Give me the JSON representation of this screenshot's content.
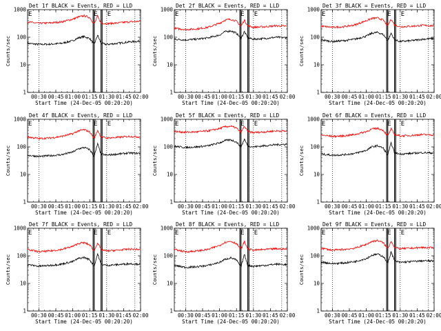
{
  "chart_data": [
    {
      "type": "line",
      "title": "Det 1f BLACK = Events, RED = LLD",
      "xlabel": "Start Time (24-Dec-05 00:20:20)",
      "ylabel": "Counts/sec",
      "yscale": "log",
      "ylim": [
        1,
        1000
      ],
      "ytick_labels": [
        "1",
        "10",
        "100",
        "1000"
      ],
      "xlim": [
        "00:20",
        "02:00"
      ],
      "xtick_labels": [
        "00:30",
        "00:45",
        "01:00",
        "01:15",
        "01:30",
        "01:45",
        "02:00"
      ],
      "vlines_dotted": [
        "00:30",
        "01:30",
        "01:55"
      ],
      "vlines_solid": [
        "01:18",
        "01:19",
        "01:25",
        "01:26"
      ],
      "markers": [
        "E",
        "E",
        "E"
      ],
      "series": [
        {
          "color": "#000000",
          "x": [
            "00:20",
            "00:30",
            "00:40",
            "00:50",
            "01:00",
            "01:05",
            "01:10",
            "01:15",
            "01:19",
            "01:22",
            "01:25",
            "01:30",
            "01:40",
            "01:50",
            "02:00"
          ],
          "y": [
            60,
            55,
            56,
            60,
            75,
            95,
            105,
            90,
            55,
            120,
            60,
            55,
            60,
            68,
            72
          ]
        },
        {
          "color": "#ff0000",
          "x": [
            "00:20",
            "00:30",
            "00:40",
            "00:50",
            "01:00",
            "01:05",
            "01:10",
            "01:15",
            "01:19",
            "01:22",
            "01:25",
            "01:30",
            "01:40",
            "01:50",
            "02:00"
          ],
          "y": [
            360,
            320,
            330,
            360,
            450,
            540,
            600,
            520,
            300,
            580,
            330,
            310,
            330,
            360,
            380
          ]
        }
      ]
    },
    {
      "type": "line",
      "title": "Det 2f BLACK = Events, RED = LLD",
      "xlabel": "Start Time (24-Dec-05 00:20:20)",
      "ylabel": "Counts/sec",
      "yscale": "log",
      "ylim": [
        1,
        1000
      ],
      "ytick_labels": [
        "1",
        "10",
        "100",
        "1000"
      ],
      "xlim": [
        "00:20",
        "02:00"
      ],
      "xtick_labels": [
        "00:30",
        "00:45",
        "01:00",
        "01:15",
        "01:30",
        "01:45",
        "02:00"
      ],
      "vlines_dotted": [
        "00:30",
        "01:30",
        "01:55"
      ],
      "vlines_solid": [
        "01:18",
        "01:19",
        "01:25",
        "01:26"
      ],
      "markers": [
        "E",
        "E",
        "E"
      ],
      "series": [
        {
          "color": "#000000",
          "x": [
            "00:20",
            "00:30",
            "00:40",
            "00:50",
            "01:00",
            "01:05",
            "01:10",
            "01:15",
            "01:19",
            "01:22",
            "01:25",
            "01:30",
            "01:40",
            "01:50",
            "02:00"
          ],
          "y": [
            85,
            80,
            85,
            95,
            120,
            160,
            170,
            140,
            90,
            160,
            95,
            85,
            90,
            100,
            95
          ]
        },
        {
          "color": "#ff0000",
          "x": [
            "00:20",
            "00:30",
            "00:40",
            "00:50",
            "01:00",
            "01:05",
            "01:10",
            "01:15",
            "01:19",
            "01:22",
            "01:25",
            "01:30",
            "01:40",
            "01:50",
            "02:00"
          ],
          "y": [
            210,
            190,
            200,
            230,
            320,
            420,
            450,
            380,
            250,
            420,
            260,
            230,
            240,
            260,
            250
          ]
        }
      ]
    },
    {
      "type": "line",
      "title": "Det 3f BLACK = Events, RED = LLD",
      "xlabel": "Start Time (24-Dec-05 00:20:20)",
      "ylabel": "Counts/sec",
      "yscale": "log",
      "ylim": [
        1,
        1000
      ],
      "ytick_labels": [
        "1",
        "10",
        "100",
        "1000"
      ],
      "xlim": [
        "00:20",
        "02:00"
      ],
      "xtick_labels": [
        "00:30",
        "00:45",
        "01:00",
        "01:15",
        "01:30",
        "01:45",
        "02:00"
      ],
      "vlines_dotted": [
        "00:30",
        "01:30",
        "01:55"
      ],
      "vlines_solid": [
        "01:18",
        "01:19",
        "01:25",
        "01:26"
      ],
      "markers": [
        "E",
        "E",
        "E"
      ],
      "series": [
        {
          "color": "#000000",
          "x": [
            "00:20",
            "00:30",
            "00:40",
            "00:50",
            "01:00",
            "01:05",
            "01:10",
            "01:15",
            "01:19",
            "01:22",
            "01:25",
            "01:30",
            "01:40",
            "01:50",
            "02:00"
          ],
          "y": [
            80,
            70,
            75,
            85,
            110,
            140,
            150,
            125,
            75,
            140,
            80,
            70,
            75,
            85,
            90
          ]
        },
        {
          "color": "#ff0000",
          "x": [
            "00:20",
            "00:30",
            "00:40",
            "00:50",
            "01:00",
            "01:05",
            "01:10",
            "01:15",
            "01:19",
            "01:22",
            "01:25",
            "01:30",
            "01:40",
            "01:50",
            "02:00"
          ],
          "y": [
            250,
            230,
            240,
            280,
            400,
            480,
            500,
            420,
            260,
            460,
            280,
            240,
            250,
            270,
            260
          ]
        }
      ]
    },
    {
      "type": "line",
      "title": "Det 4f BLACK = Events, RED = LLD",
      "xlabel": "Start Time (24-Dec-05 00:20:20)",
      "ylabel": "Counts/sec",
      "yscale": "log",
      "ylim": [
        1,
        1000
      ],
      "ytick_labels": [
        "1",
        "10",
        "100",
        "1000"
      ],
      "xlim": [
        "00:20",
        "02:00"
      ],
      "xtick_labels": [
        "00:30",
        "00:45",
        "01:00",
        "01:15",
        "01:30",
        "01:45",
        "02:00"
      ],
      "vlines_dotted": [
        "00:30",
        "01:30",
        "01:55"
      ],
      "vlines_solid": [
        "01:18",
        "01:19",
        "01:25",
        "01:26"
      ],
      "markers": [
        "E",
        "E",
        "E"
      ],
      "series": [
        {
          "color": "#000000",
          "x": [
            "00:20",
            "00:30",
            "00:40",
            "00:50",
            "01:00",
            "01:05",
            "01:10",
            "01:15",
            "01:19",
            "01:22",
            "01:25",
            "01:30",
            "01:40",
            "01:50",
            "02:00"
          ],
          "y": [
            50,
            45,
            48,
            52,
            65,
            85,
            95,
            80,
            45,
            130,
            55,
            50,
            55,
            60,
            58
          ]
        },
        {
          "color": "#ff0000",
          "x": [
            "00:20",
            "00:30",
            "00:40",
            "00:50",
            "01:00",
            "01:05",
            "01:10",
            "01:15",
            "01:19",
            "01:22",
            "01:25",
            "01:30",
            "01:40",
            "01:50",
            "02:00"
          ],
          "y": [
            230,
            200,
            210,
            240,
            300,
            380,
            420,
            350,
            200,
            400,
            230,
            210,
            220,
            240,
            230
          ]
        }
      ]
    },
    {
      "type": "line",
      "title": "Det 5f BLACK = Events, RED = LLD",
      "xlabel": "Start Time (24-Dec-05 00:20:20)",
      "ylabel": "Counts/sec",
      "yscale": "log",
      "ylim": [
        1,
        1000
      ],
      "ytick_labels": [
        "1",
        "10",
        "100",
        "1000"
      ],
      "xlim": [
        "00:20",
        "02:00"
      ],
      "xtick_labels": [
        "00:30",
        "00:45",
        "01:00",
        "01:15",
        "01:30",
        "01:45",
        "02:00"
      ],
      "vlines_dotted": [
        "00:30",
        "01:30",
        "01:55"
      ],
      "vlines_solid": [
        "01:18",
        "01:19",
        "01:25",
        "01:26"
      ],
      "markers": [
        "E",
        "E",
        "E"
      ],
      "series": [
        {
          "color": "#000000",
          "x": [
            "00:20",
            "00:30",
            "00:40",
            "00:50",
            "01:00",
            "01:05",
            "01:10",
            "01:15",
            "01:19",
            "01:22",
            "01:25",
            "01:30",
            "01:40",
            "01:50",
            "02:00"
          ],
          "y": [
            105,
            95,
            100,
            110,
            140,
            170,
            180,
            150,
            100,
            190,
            110,
            100,
            110,
            120,
            125
          ]
        },
        {
          "color": "#ff0000",
          "x": [
            "00:20",
            "00:30",
            "00:40",
            "00:50",
            "01:00",
            "01:05",
            "01:10",
            "01:15",
            "01:19",
            "01:22",
            "01:25",
            "01:30",
            "01:40",
            "01:50",
            "02:00"
          ],
          "y": [
            360,
            340,
            350,
            380,
            460,
            540,
            560,
            480,
            330,
            560,
            360,
            330,
            350,
            380,
            370
          ]
        }
      ]
    },
    {
      "type": "line",
      "title": "Det 6f BLACK = Events, RED = LLD",
      "xlabel": "Start Time (24-Dec-05 00:20:20)",
      "ylabel": "Counts/sec",
      "yscale": "log",
      "ylim": [
        1,
        1000
      ],
      "ytick_labels": [
        "1",
        "10",
        "100",
        "1000"
      ],
      "xlim": [
        "00:20",
        "02:00"
      ],
      "xtick_labels": [
        "00:30",
        "00:45",
        "01:00",
        "01:15",
        "01:30",
        "01:45",
        "02:00"
      ],
      "vlines_dotted": [
        "00:30",
        "01:30",
        "01:55"
      ],
      "vlines_solid": [
        "01:18",
        "01:19",
        "01:25",
        "01:26"
      ],
      "markers": [
        "E",
        "E",
        "E"
      ],
      "series": [
        {
          "color": "#000000",
          "x": [
            "00:20",
            "00:30",
            "00:40",
            "00:50",
            "01:00",
            "01:05",
            "01:10",
            "01:15",
            "01:19",
            "01:22",
            "01:25",
            "01:30",
            "01:40",
            "01:50",
            "02:00"
          ],
          "y": [
            55,
            50,
            52,
            58,
            75,
            100,
            110,
            90,
            50,
            140,
            60,
            55,
            58,
            62,
            60
          ]
        },
        {
          "color": "#ff0000",
          "x": [
            "00:20",
            "00:30",
            "00:40",
            "00:50",
            "01:00",
            "01:05",
            "01:10",
            "01:15",
            "01:19",
            "01:22",
            "01:25",
            "01:30",
            "01:40",
            "01:50",
            "02:00"
          ],
          "y": [
            270,
            240,
            250,
            280,
            360,
            440,
            470,
            400,
            250,
            450,
            280,
            250,
            260,
            280,
            270
          ]
        }
      ]
    },
    {
      "type": "line",
      "title": "Det 7f BLACK = Events, RED = LLD",
      "xlabel": "Start Time (24-Dec-05 00:20:20)",
      "ylabel": "Counts/sec",
      "yscale": "log",
      "ylim": [
        1,
        1000
      ],
      "ytick_labels": [
        "1",
        "10",
        "100",
        "1000"
      ],
      "xlim": [
        "00:20",
        "02:00"
      ],
      "xtick_labels": [
        "00:30",
        "00:45",
        "01:00",
        "01:15",
        "01:30",
        "01:45",
        "02:00"
      ],
      "vlines_dotted": [
        "00:30",
        "01:30",
        "01:55"
      ],
      "vlines_solid": [
        "01:18",
        "01:19",
        "01:25",
        "01:26"
      ],
      "markers": [
        "E",
        "E",
        "E"
      ],
      "series": [
        {
          "color": "#000000",
          "x": [
            "00:20",
            "00:30",
            "00:40",
            "00:50",
            "01:00",
            "01:05",
            "01:10",
            "01:15",
            "01:19",
            "01:22",
            "01:25",
            "01:30",
            "01:40",
            "01:50",
            "02:00"
          ],
          "y": [
            48,
            42,
            45,
            50,
            62,
            80,
            88,
            72,
            42,
            120,
            50,
            45,
            48,
            52,
            50
          ]
        },
        {
          "color": "#ff0000",
          "x": [
            "00:20",
            "00:30",
            "00:40",
            "00:50",
            "01:00",
            "01:05",
            "01:10",
            "01:15",
            "01:19",
            "01:22",
            "01:25",
            "01:30",
            "01:40",
            "01:50",
            "02:00"
          ],
          "y": [
            170,
            140,
            150,
            170,
            220,
            280,
            300,
            250,
            150,
            300,
            170,
            150,
            160,
            175,
            170
          ]
        }
      ]
    },
    {
      "type": "line",
      "title": "Det 8f BLACK = Events, RED = LLD",
      "xlabel": "Start Time (24-Dec-05 00:20:20)",
      "ylabel": "Counts/sec",
      "yscale": "log",
      "ylim": [
        1,
        1000
      ],
      "ytick_labels": [
        "1",
        "10",
        "100",
        "1000"
      ],
      "xlim": [
        "00:20",
        "02:00"
      ],
      "xtick_labels": [
        "00:30",
        "00:45",
        "01:00",
        "01:15",
        "01:30",
        "01:45",
        "02:00"
      ],
      "vlines_dotted": [
        "00:30",
        "01:30",
        "01:55"
      ],
      "vlines_solid": [
        "01:18",
        "01:19",
        "01:25",
        "01:26"
      ],
      "markers": [
        "E",
        "E",
        "E"
      ],
      "series": [
        {
          "color": "#000000",
          "x": [
            "00:20",
            "00:30",
            "00:40",
            "00:50",
            "01:00",
            "01:05",
            "01:10",
            "01:15",
            "01:19",
            "01:22",
            "01:25",
            "01:30",
            "01:40",
            "01:50",
            "02:00"
          ],
          "y": [
            45,
            38,
            40,
            45,
            58,
            75,
            85,
            70,
            40,
            115,
            45,
            42,
            45,
            50,
            48
          ]
        },
        {
          "color": "#ff0000",
          "x": [
            "00:20",
            "00:30",
            "00:40",
            "00:50",
            "01:00",
            "01:05",
            "01:10",
            "01:15",
            "01:19",
            "01:22",
            "01:25",
            "01:30",
            "01:40",
            "01:50",
            "02:00"
          ],
          "y": [
            170,
            140,
            150,
            170,
            240,
            310,
            340,
            280,
            170,
            330,
            180,
            160,
            170,
            180,
            175
          ]
        }
      ]
    },
    {
      "type": "line",
      "title": "Det 9f BLACK = Events, RED = LLD",
      "xlabel": "Start Time (24-Dec-05 00:20:20)",
      "ylabel": "Counts/sec",
      "yscale": "log",
      "ylim": [
        1,
        1000
      ],
      "ytick_labels": [
        "1",
        "10",
        "100",
        "1000"
      ],
      "xlim": [
        "00:20",
        "02:00"
      ],
      "xtick_labels": [
        "00:30",
        "00:45",
        "01:00",
        "01:15",
        "01:30",
        "01:45",
        "02:00"
      ],
      "vlines_dotted": [
        "00:30",
        "01:30",
        "01:55"
      ],
      "vlines_solid": [
        "01:18",
        "01:19",
        "01:25",
        "01:26"
      ],
      "markers": [
        "E",
        "E",
        "E"
      ],
      "series": [
        {
          "color": "#000000",
          "x": [
            "00:20",
            "00:30",
            "00:40",
            "00:50",
            "01:00",
            "01:05",
            "01:10",
            "01:15",
            "01:19",
            "01:22",
            "01:25",
            "01:30",
            "01:40",
            "01:50",
            "02:00"
          ],
          "y": [
            60,
            52,
            55,
            62,
            80,
            105,
            115,
            95,
            55,
            140,
            65,
            58,
            62,
            66,
            65
          ]
        },
        {
          "color": "#ff0000",
          "x": [
            "00:20",
            "00:30",
            "00:40",
            "00:50",
            "01:00",
            "01:05",
            "01:10",
            "01:15",
            "01:19",
            "01:22",
            "01:25",
            "01:30",
            "01:40",
            "01:50",
            "02:00"
          ],
          "y": [
            190,
            160,
            170,
            190,
            260,
            330,
            360,
            300,
            180,
            350,
            200,
            180,
            190,
            200,
            195
          ]
        }
      ]
    }
  ]
}
